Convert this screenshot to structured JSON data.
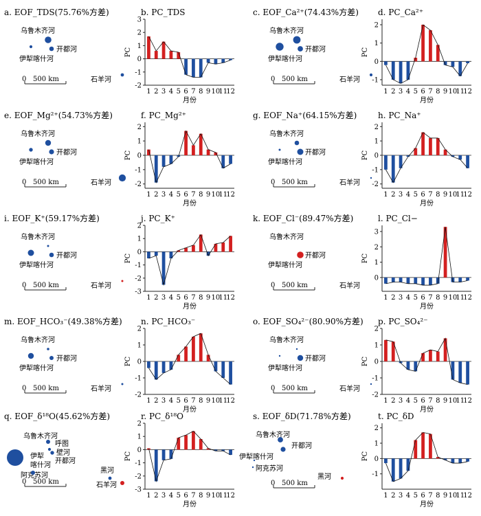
{
  "colors": {
    "pos": "#d32020",
    "neg": "#1f4f9f",
    "dot": "#1f4f9f",
    "dotRed": "#d32020"
  },
  "common": {
    "ylabel": "PC",
    "xlabel": "月份",
    "scale": "500 km",
    "scale0": "0"
  },
  "sites": {
    "wlmq": "乌鲁木齐河",
    "kdh": "开都河",
    "ylk": "伊犁喀什河",
    "syh": "石羊河",
    "ylk2a": "伊犁",
    "ylk2b": "喀什河",
    "htb": "呼图",
    "htb2": "壁河",
    "aks": "阿克苏河",
    "hh": "黑河"
  },
  "panels": [
    {
      "id": "a",
      "eof": {
        "title": "a. EOF_TDS(75.76%方差)",
        "dots": [
          {
            "site": "wlmq",
            "v": 0.8
          },
          {
            "site": "kdh",
            "v": 0.55
          },
          {
            "site": "ylk",
            "v": 0.35
          },
          {
            "site": "syh",
            "v": 0.4
          }
        ]
      },
      "pc": {
        "title": "b. PC_TDS",
        "ylim": [
          -2,
          3
        ],
        "yticks": [
          -2,
          -1,
          0,
          1,
          2,
          3
        ],
        "values": [
          1.7,
          0.6,
          1.3,
          0.6,
          0.5,
          -1.2,
          -1.4,
          -1.4,
          -0.3,
          -0.4,
          -0.3,
          -0.1
        ]
      }
    },
    {
      "id": "c",
      "eof": {
        "title": "c. EOF_Ca²⁺(74.43%方差)",
        "dots": [
          {
            "site": "wlmq",
            "v": 0.9
          },
          {
            "site": "kdh",
            "v": 0.65
          },
          {
            "site": "ylk",
            "v": 0.95
          },
          {
            "site": "syh",
            "v": 0.35
          }
        ]
      },
      "pc": {
        "title": "d. PC_Ca²⁺",
        "ylim": [
          -1.3,
          2.3
        ],
        "yticks": [
          -1,
          0,
          1,
          2
        ],
        "values": [
          -0.2,
          -1.0,
          -1.2,
          -1.0,
          0.2,
          2.0,
          1.7,
          0.9,
          -0.2,
          -0.3,
          -0.8,
          -0.1
        ]
      }
    },
    {
      "id": "e",
      "eof": {
        "title": "e. EOF_Mg²⁺(54.73%方差)",
        "dots": [
          {
            "site": "wlmq",
            "v": 0.7
          },
          {
            "site": "kdh",
            "v": 0.6
          },
          {
            "site": "ylk",
            "v": 0.45
          },
          {
            "site": "syh",
            "v": 0.85
          }
        ]
      },
      "pc": {
        "title": "f. PC_Mg²⁺",
        "ylim": [
          -2.3,
          2.3
        ],
        "yticks": [
          -2,
          -1,
          0,
          1,
          2
        ],
        "values": [
          0.4,
          -1.9,
          -0.8,
          -0.6,
          -0.1,
          1.7,
          0.7,
          1.5,
          0.4,
          0.2,
          -0.9,
          -0.6
        ]
      }
    },
    {
      "id": "g",
      "eof": {
        "title": "g. EOF_Na⁺(64.15%方差)",
        "dots": [
          {
            "site": "wlmq",
            "v": 0.55
          },
          {
            "site": "kdh",
            "v": 0.75
          },
          {
            "site": "ylk",
            "v": 0.25
          },
          {
            "site": "syh",
            "v": 0.15
          }
        ]
      },
      "pc": {
        "title": "h. PC_Na⁺",
        "ylim": [
          -2.3,
          2.3
        ],
        "yticks": [
          -2,
          -1,
          0,
          1,
          2
        ],
        "values": [
          -1.0,
          -1.9,
          -0.9,
          -0.1,
          0.5,
          1.6,
          1.2,
          1.2,
          0.4,
          -0.1,
          -0.3,
          -0.9
        ]
      }
    },
    {
      "id": "i",
      "eof": {
        "title": "i. EOF_K⁺(59.17%方差)",
        "dots": [
          {
            "site": "wlmq",
            "v": 0.25
          },
          {
            "site": "kdh",
            "v": 0.55
          },
          {
            "site": "ylk",
            "v": 0.75
          },
          {
            "site": "syh",
            "v": 0.25,
            "red": true
          }
        ]
      },
      "pc": {
        "title": "j. PC_K⁺",
        "ylim": [
          -3,
          2
        ],
        "yticks": [
          -3,
          -2,
          -1,
          0,
          1,
          2
        ],
        "values": [
          -0.5,
          -0.3,
          -2.5,
          -0.5,
          0.1,
          0.3,
          0.5,
          1.3,
          -0.3,
          0.6,
          0.7,
          1.2
        ]
      }
    },
    {
      "id": "k",
      "eof": {
        "title": "k. EOF_Cl⁻(89.47%方差)",
        "dots": [
          {
            "site": "kdh",
            "v": 0.8,
            "red": true
          }
        ],
        "labels": [
          "wlmq",
          "kdh",
          "ylk",
          "syh"
        ]
      },
      "pc": {
        "title": "l. PC_Cl−",
        "ylim": [
          -0.9,
          3.4
        ],
        "yticks": [
          0,
          1,
          2,
          3
        ],
        "values": [
          -0.4,
          -0.3,
          -0.3,
          -0.4,
          -0.4,
          -0.5,
          -0.5,
          -0.4,
          3.3,
          -0.3,
          -0.3,
          -0.2
        ]
      }
    },
    {
      "id": "m",
      "eof": {
        "title": "m. EOF_HCO₃⁻(49.38%方差)",
        "dots": [
          {
            "site": "wlmq",
            "v": 0.3
          },
          {
            "site": "kdh",
            "v": 0.5
          },
          {
            "site": "ylk",
            "v": 0.7
          },
          {
            "site": "syh",
            "v": 0.25
          }
        ]
      },
      "pc": {
        "title": "n. PC_HCO₃⁻",
        "ylim": [
          -2,
          2
        ],
        "yticks": [
          -2,
          -1,
          0,
          1,
          2
        ],
        "values": [
          -0.4,
          -1.1,
          -0.7,
          -0.5,
          0.4,
          0.9,
          1.5,
          1.7,
          0.4,
          -0.6,
          -1.0,
          -1.4
        ]
      }
    },
    {
      "id": "o",
      "eof": {
        "title": "o. EOF_SO₄²⁻(80.90%方差)",
        "dots": [
          {
            "site": "wlmq",
            "v": 0.2
          },
          {
            "site": "kdh",
            "v": 0.7
          },
          {
            "site": "ylk",
            "v": 0.2
          },
          {
            "site": "syh",
            "v": 0.15
          }
        ]
      },
      "pc": {
        "title": "p. PC_SO₄²⁻",
        "ylim": [
          -2,
          2
        ],
        "yticks": [
          -2,
          -1,
          0,
          1,
          2
        ],
        "values": [
          1.3,
          1.2,
          -0.1,
          -0.5,
          -0.6,
          0.5,
          0.7,
          0.6,
          1.4,
          -1.1,
          -1.3,
          -1.4
        ]
      }
    },
    {
      "id": "q",
      "eof": {
        "title": "q. EOF_δ¹⁸O(45.62%方差)",
        "dots": [
          {
            "site": "ylk2",
            "v": 2.0
          },
          {
            "site": "wlmq",
            "v": 0.5
          },
          {
            "site": "kdh",
            "v": 0.45
          },
          {
            "site": "htb",
            "v": 0.35
          },
          {
            "site": "aks",
            "v": 0.5
          },
          {
            "site": "hh",
            "v": 0.4
          },
          {
            "site": "syh",
            "v": 0.5,
            "red": true
          }
        ]
      },
      "pc": {
        "title": "r. PC_δ¹⁸O",
        "ylim": [
          -3,
          2
        ],
        "yticks": [
          -3,
          -2,
          -1,
          0,
          1,
          2
        ],
        "values": [
          0.1,
          -2.4,
          -0.8,
          -0.7,
          0.9,
          1.1,
          1.4,
          0.8,
          0.1,
          -0.1,
          -0.1,
          -0.4
        ]
      }
    },
    {
      "id": "s",
      "eof": {
        "title": "s. EOF_δD(71.78%方差)",
        "dots": [
          {
            "site": "wlmq",
            "v": 0.65
          },
          {
            "site": "kdh",
            "v": 0.6
          },
          {
            "site": "ylk",
            "v": 0.15
          },
          {
            "site": "aks",
            "v": 0.15
          },
          {
            "site": "hh",
            "v": 0.35,
            "red": true
          }
        ]
      },
      "pc": {
        "title": "t. PC_δD",
        "ylim": [
          -2,
          2.3
        ],
        "yticks": [
          -1,
          0,
          1,
          2
        ],
        "values": [
          -0.3,
          -1.5,
          -1.3,
          -0.8,
          1.2,
          1.7,
          1.6,
          0.1,
          -0.1,
          -0.3,
          -0.3,
          -0.2
        ]
      }
    }
  ],
  "chart_data": {
    "type": "bar",
    "categories": [
      "1",
      "2",
      "3",
      "4",
      "5",
      "6",
      "7",
      "8",
      "9",
      "10",
      "11",
      "12"
    ],
    "xlabel": "月份",
    "ylabel": "PC",
    "series": [
      {
        "name": "PC_TDS",
        "values": [
          1.7,
          0.6,
          1.3,
          0.6,
          0.5,
          -1.2,
          -1.4,
          -1.4,
          -0.3,
          -0.4,
          -0.3,
          -0.1
        ]
      },
      {
        "name": "PC_Ca²⁺",
        "values": [
          -0.2,
          -1.0,
          -1.2,
          -1.0,
          0.2,
          2.0,
          1.7,
          0.9,
          -0.2,
          -0.3,
          -0.8,
          -0.1
        ]
      },
      {
        "name": "PC_Mg²⁺",
        "values": [
          0.4,
          -1.9,
          -0.8,
          -0.6,
          -0.1,
          1.7,
          0.7,
          1.5,
          0.4,
          0.2,
          -0.9,
          -0.6
        ]
      },
      {
        "name": "PC_Na⁺",
        "values": [
          -1.0,
          -1.9,
          -0.9,
          -0.1,
          0.5,
          1.6,
          1.2,
          1.2,
          0.4,
          -0.1,
          -0.3,
          -0.9
        ]
      },
      {
        "name": "PC_K⁺",
        "values": [
          -0.5,
          -0.3,
          -2.5,
          -0.5,
          0.1,
          0.3,
          0.5,
          1.3,
          -0.3,
          0.6,
          0.7,
          1.2
        ]
      },
      {
        "name": "PC_Cl−",
        "values": [
          -0.4,
          -0.3,
          -0.3,
          -0.4,
          -0.4,
          -0.5,
          -0.5,
          -0.4,
          3.3,
          -0.3,
          -0.3,
          -0.2
        ]
      },
      {
        "name": "PC_HCO₃⁻",
        "values": [
          -0.4,
          -1.1,
          -0.7,
          -0.5,
          0.4,
          0.9,
          1.5,
          1.7,
          0.4,
          -0.6,
          -1.0,
          -1.4
        ]
      },
      {
        "name": "PC_SO₄²⁻",
        "values": [
          1.3,
          1.2,
          -0.1,
          -0.5,
          -0.6,
          0.5,
          0.7,
          0.6,
          1.4,
          -1.1,
          -1.3,
          -1.4
        ]
      },
      {
        "name": "PC_δ¹⁸O",
        "values": [
          0.1,
          -2.4,
          -0.8,
          -0.7,
          0.9,
          1.1,
          1.4,
          0.8,
          0.1,
          -0.1,
          -0.1,
          -0.4
        ]
      },
      {
        "name": "PC_δD",
        "values": [
          -0.3,
          -1.5,
          -1.3,
          -0.8,
          1.2,
          1.7,
          1.6,
          0.1,
          -0.1,
          -0.3,
          -0.3,
          -0.2
        ]
      }
    ]
  }
}
